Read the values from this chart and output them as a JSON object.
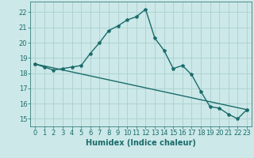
{
  "title": "",
  "xlabel": "Humidex (Indice chaleur)",
  "background_color": "#cce8e8",
  "grid_color": "#aacfcf",
  "line_color": "#1a6b6b",
  "xlim": [
    -0.5,
    23.5
  ],
  "ylim": [
    14.5,
    22.7
  ],
  "xticks": [
    0,
    1,
    2,
    3,
    4,
    5,
    6,
    7,
    8,
    9,
    10,
    11,
    12,
    13,
    14,
    15,
    16,
    17,
    18,
    19,
    20,
    21,
    22,
    23
  ],
  "yticks": [
    15,
    16,
    17,
    18,
    19,
    20,
    21,
    22
  ],
  "line1_x": [
    0,
    1,
    2,
    3,
    4,
    5,
    6,
    7,
    8,
    9,
    10,
    11,
    12,
    13,
    14,
    15,
    16,
    17,
    18,
    19,
    20,
    21,
    22,
    23
  ],
  "line1_y": [
    18.6,
    18.4,
    18.2,
    18.3,
    18.4,
    18.5,
    19.3,
    20.0,
    20.8,
    21.1,
    21.5,
    21.7,
    22.2,
    20.3,
    19.5,
    18.3,
    18.5,
    17.9,
    16.8,
    15.8,
    15.7,
    15.3,
    15.0,
    15.6
  ],
  "line2_x": [
    0,
    23
  ],
  "line2_y": [
    18.6,
    15.6
  ],
  "marker": "*",
  "markersize": 3,
  "linewidth": 1.0,
  "xlabel_fontsize": 7,
  "tick_fontsize": 6
}
